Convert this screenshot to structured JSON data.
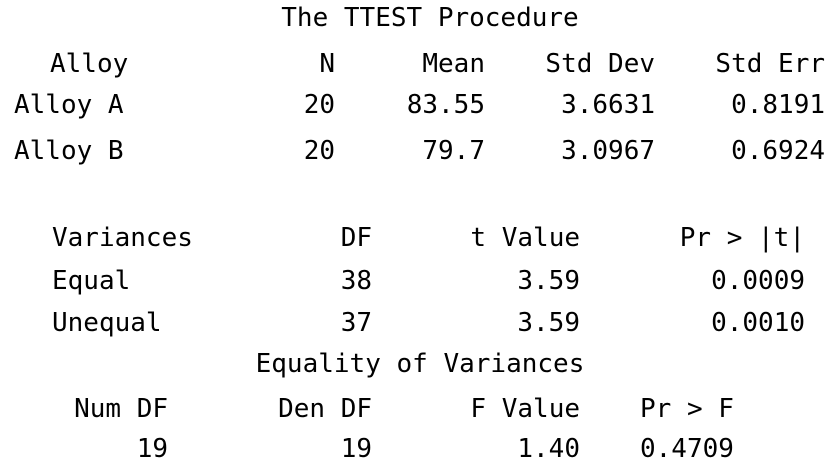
{
  "title": "The TTEST Procedure",
  "stats": {
    "headers": [
      "Alloy",
      "N",
      "Mean",
      "Std Dev",
      "Std Err"
    ],
    "rows": [
      [
        "Alloy A",
        "20",
        "83.55",
        "3.6631",
        "0.8191"
      ],
      [
        "Alloy B",
        "20",
        "79.7",
        "3.0967",
        "0.6924"
      ]
    ]
  },
  "ttests": {
    "headers": [
      "Variances",
      "DF",
      "t Value",
      "Pr > |t|"
    ],
    "rows": [
      [
        "Equal",
        "38",
        "3.59",
        "0.0009"
      ],
      [
        "Unequal",
        "37",
        "3.59",
        "0.0010"
      ]
    ]
  },
  "equality": {
    "title": "Equality of Variances",
    "headers": [
      "Num DF",
      "Den DF",
      "F Value",
      "Pr > F"
    ],
    "rows": [
      [
        "19",
        "19",
        "1.40",
        "0.4709"
      ]
    ]
  }
}
